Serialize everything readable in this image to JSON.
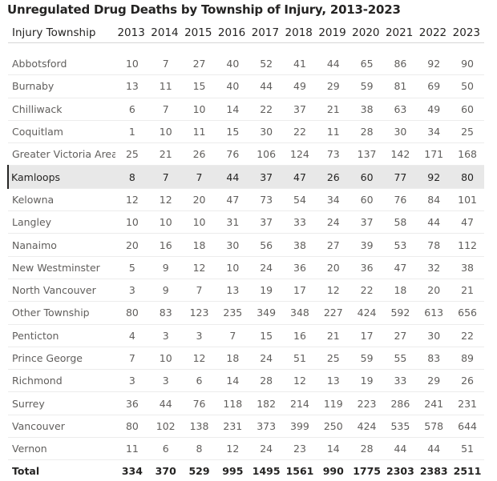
{
  "title": "Unregulated Drug Deaths by Township of Injury, 2013-2023",
  "chart_data": {
    "type": "table",
    "title": "Unregulated Drug Deaths by Township of Injury, 2013-2023",
    "column_header": "Injury Township",
    "years": [
      "2013",
      "2014",
      "2015",
      "2016",
      "2017",
      "2018",
      "2019",
      "2020",
      "2021",
      "2022",
      "2023"
    ],
    "rows": [
      {
        "name": "Abbotsford",
        "values": [
          10,
          7,
          27,
          40,
          52,
          41,
          44,
          65,
          86,
          92,
          90
        ]
      },
      {
        "name": "Burnaby",
        "values": [
          13,
          11,
          15,
          40,
          44,
          49,
          29,
          59,
          81,
          69,
          50
        ]
      },
      {
        "name": "Chilliwack",
        "values": [
          6,
          7,
          10,
          14,
          22,
          37,
          21,
          38,
          63,
          49,
          60
        ]
      },
      {
        "name": "Coquitlam",
        "values": [
          1,
          10,
          11,
          15,
          30,
          22,
          11,
          28,
          30,
          34,
          25
        ]
      },
      {
        "name": "Greater Victoria Area",
        "values": [
          25,
          21,
          26,
          76,
          106,
          124,
          73,
          137,
          142,
          171,
          168
        ]
      },
      {
        "name": "Kamloops",
        "values": [
          8,
          7,
          7,
          44,
          37,
          47,
          26,
          60,
          77,
          92,
          80
        ],
        "selected": true
      },
      {
        "name": "Kelowna",
        "values": [
          12,
          12,
          20,
          47,
          73,
          54,
          34,
          60,
          76,
          84,
          101
        ]
      },
      {
        "name": "Langley",
        "values": [
          10,
          10,
          10,
          31,
          37,
          33,
          24,
          37,
          58,
          44,
          47
        ]
      },
      {
        "name": "Nanaimo",
        "values": [
          20,
          16,
          18,
          30,
          56,
          38,
          27,
          39,
          53,
          78,
          112
        ]
      },
      {
        "name": "New Westminster",
        "values": [
          5,
          9,
          12,
          10,
          24,
          36,
          20,
          36,
          47,
          32,
          38
        ]
      },
      {
        "name": "North Vancouver",
        "values": [
          3,
          9,
          7,
          13,
          19,
          17,
          12,
          22,
          18,
          20,
          21
        ]
      },
      {
        "name": "Other Township",
        "values": [
          80,
          83,
          123,
          235,
          349,
          348,
          227,
          424,
          592,
          613,
          656
        ]
      },
      {
        "name": "Penticton",
        "values": [
          4,
          3,
          3,
          7,
          15,
          16,
          21,
          17,
          27,
          30,
          22
        ]
      },
      {
        "name": "Prince George",
        "values": [
          7,
          10,
          12,
          18,
          24,
          51,
          25,
          59,
          55,
          83,
          89
        ]
      },
      {
        "name": "Richmond",
        "values": [
          3,
          3,
          6,
          14,
          28,
          12,
          13,
          19,
          33,
          29,
          26
        ]
      },
      {
        "name": "Surrey",
        "values": [
          36,
          44,
          76,
          118,
          182,
          214,
          119,
          223,
          286,
          241,
          231
        ]
      },
      {
        "name": "Vancouver",
        "values": [
          80,
          102,
          138,
          231,
          373,
          399,
          250,
          424,
          535,
          578,
          644
        ]
      },
      {
        "name": "Vernon",
        "values": [
          11,
          6,
          8,
          12,
          24,
          23,
          14,
          28,
          44,
          44,
          51
        ]
      }
    ],
    "total": {
      "name": "Total",
      "values": [
        334,
        370,
        529,
        995,
        1495,
        1561,
        990,
        1775,
        2303,
        2383,
        2511
      ]
    }
  }
}
